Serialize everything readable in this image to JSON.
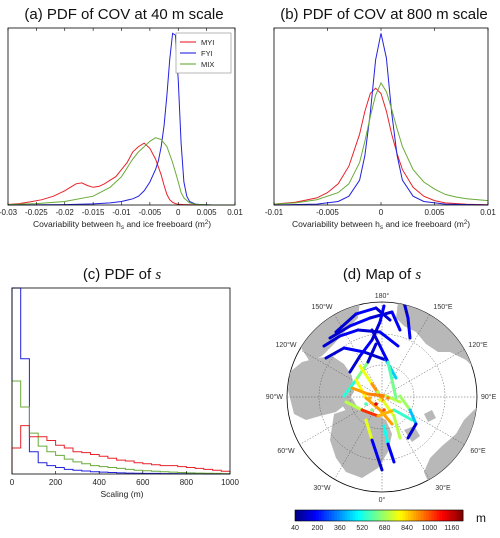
{
  "chart_data": [
    {
      "panel": "a",
      "type": "line",
      "title": "(a) PDF of COV at 40 m scale",
      "xlabel": "Covariability between h",
      "xlabel_sub": "s",
      "xlabel_tail": " and ice freeboard (m",
      "xlabel_sup": "2",
      "xlabel_end": ")",
      "xlim": [
        -0.03,
        0.01
      ],
      "ylim": [
        0,
        1
      ],
      "xticks": [
        "-0.03",
        "-0.025",
        "-0.02",
        "-0.015",
        "-0.01",
        "-0.005",
        "0",
        "0.005",
        "0.01"
      ],
      "xtick_values": [
        -0.03,
        -0.025,
        -0.02,
        -0.015,
        -0.01,
        -0.005,
        0,
        0.005,
        0.01
      ],
      "legend_position": "top-right",
      "series": [
        {
          "name": "MYI",
          "color": "#e8222a",
          "x": [
            -0.03,
            -0.028,
            -0.026,
            -0.024,
            -0.022,
            -0.02,
            -0.019,
            -0.018,
            -0.017,
            -0.016,
            -0.015,
            -0.014,
            -0.013,
            -0.012,
            -0.011,
            -0.01,
            -0.009,
            -0.008,
            -0.007,
            -0.006,
            -0.005,
            -0.004,
            -0.003,
            -0.0025,
            -0.002,
            -0.0015,
            -0.001,
            -0.0005,
            0,
            0.001,
            0.002,
            0.004,
            0.006,
            0.008,
            0.01
          ],
          "y": [
            0.003,
            0.008,
            0.018,
            0.03,
            0.05,
            0.08,
            0.1,
            0.12,
            0.125,
            0.11,
            0.1,
            0.105,
            0.12,
            0.14,
            0.16,
            0.2,
            0.24,
            0.3,
            0.33,
            0.35,
            0.32,
            0.26,
            0.17,
            0.11,
            0.06,
            0.03,
            0.015,
            0.008,
            0.004,
            0.002,
            0.001,
            0,
            0,
            0,
            0
          ]
        },
        {
          "name": "FYI",
          "color": "#2222dd",
          "x": [
            -0.03,
            -0.02,
            -0.015,
            -0.012,
            -0.01,
            -0.008,
            -0.007,
            -0.006,
            -0.005,
            -0.004,
            -0.0035,
            -0.003,
            -0.0025,
            -0.002,
            -0.0015,
            -0.001,
            -0.0005,
            0,
            0.0005,
            0.001,
            0.0015,
            0.002,
            0.003,
            0.004,
            0.006,
            0.01
          ],
          "y": [
            0,
            0.002,
            0.006,
            0.012,
            0.02,
            0.035,
            0.05,
            0.08,
            0.13,
            0.2,
            0.25,
            0.33,
            0.45,
            0.62,
            0.82,
            0.97,
            0.96,
            0.7,
            0.35,
            0.13,
            0.05,
            0.02,
            0.005,
            0.002,
            0,
            0
          ]
        },
        {
          "name": "MIX",
          "color": "#6aaa3a",
          "x": [
            -0.03,
            -0.025,
            -0.02,
            -0.015,
            -0.012,
            -0.01,
            -0.008,
            -0.007,
            -0.006,
            -0.005,
            -0.004,
            -0.003,
            -0.002,
            -0.001,
            0,
            0.0005,
            0.001,
            0.002,
            0.003,
            0.004,
            0.006,
            0.01
          ],
          "y": [
            0.002,
            0.008,
            0.02,
            0.05,
            0.1,
            0.16,
            0.26,
            0.3,
            0.33,
            0.36,
            0.38,
            0.37,
            0.33,
            0.24,
            0.13,
            0.07,
            0.04,
            0.012,
            0.004,
            0.002,
            0,
            0
          ]
        }
      ]
    },
    {
      "panel": "b",
      "type": "line",
      "title": "(b) PDF of COV at 800 m scale",
      "xlabel": "Covariability between h",
      "xlabel_sub": "s",
      "xlabel_tail": " and ice freeboard (m",
      "xlabel_sup": "2",
      "xlabel_end": ")",
      "xlim": [
        -0.01,
        0.01
      ],
      "ylim": [
        0,
        1
      ],
      "xticks": [
        "-0.01",
        "-0.005",
        "0",
        "0.005",
        "0.01"
      ],
      "xtick_values": [
        -0.01,
        -0.005,
        0,
        0.005,
        0.01
      ],
      "series": [
        {
          "name": "MYI",
          "color": "#e8222a",
          "x": [
            -0.01,
            -0.008,
            -0.006,
            -0.005,
            -0.004,
            -0.003,
            -0.002,
            -0.0015,
            -0.001,
            -0.0005,
            0,
            0.0005,
            0.001,
            0.0015,
            0.002,
            0.003,
            0.004,
            0.005,
            0.006,
            0.008,
            0.01
          ],
          "y": [
            0.005,
            0.015,
            0.04,
            0.07,
            0.12,
            0.22,
            0.4,
            0.53,
            0.63,
            0.66,
            0.63,
            0.53,
            0.4,
            0.29,
            0.2,
            0.1,
            0.05,
            0.025,
            0.012,
            0.004,
            0.001
          ]
        },
        {
          "name": "FYI",
          "color": "#2222dd",
          "x": [
            -0.01,
            -0.006,
            -0.004,
            -0.003,
            -0.002,
            -0.0015,
            -0.001,
            -0.0005,
            0,
            0.0005,
            0.001,
            0.0015,
            0.002,
            0.003,
            0.004,
            0.006,
            0.01
          ],
          "y": [
            0,
            0.005,
            0.02,
            0.05,
            0.14,
            0.28,
            0.52,
            0.82,
            0.97,
            0.83,
            0.52,
            0.28,
            0.14,
            0.05,
            0.02,
            0.005,
            0
          ]
        },
        {
          "name": "MIX",
          "color": "#6aaa3a",
          "x": [
            -0.01,
            -0.008,
            -0.006,
            -0.004,
            -0.003,
            -0.002,
            -0.0015,
            -0.001,
            -0.0005,
            0,
            0.0005,
            0.001,
            0.0015,
            0.002,
            0.003,
            0.004,
            0.005,
            0.006,
            0.007,
            0.008,
            0.01
          ],
          "y": [
            0.005,
            0.012,
            0.03,
            0.07,
            0.12,
            0.24,
            0.36,
            0.5,
            0.62,
            0.69,
            0.64,
            0.54,
            0.43,
            0.33,
            0.2,
            0.13,
            0.09,
            0.06,
            0.045,
            0.035,
            0.025
          ]
        }
      ]
    },
    {
      "panel": "c",
      "type": "histogram",
      "title": "(c) PDF of ",
      "title_italic": "s",
      "xlabel": "Scaling (m)",
      "xlim": [
        0,
        1000
      ],
      "ylim": [
        0,
        1
      ],
      "xticks": [
        "0",
        "200",
        "400",
        "600",
        "800",
        "1000"
      ],
      "xtick_values": [
        0,
        200,
        400,
        600,
        800,
        1000
      ],
      "bin_edges": [
        0,
        40,
        80,
        120,
        160,
        200,
        240,
        280,
        320,
        360,
        400,
        440,
        480,
        520,
        560,
        600,
        640,
        680,
        720,
        760,
        800,
        840,
        880,
        920,
        960,
        1000
      ],
      "series": [
        {
          "name": "FYI",
          "color": "#2222dd",
          "values": [
            1.0,
            0.62,
            0.12,
            0.06,
            0.045,
            0.035,
            0.025,
            0.02,
            0.016,
            0.012,
            0.01,
            0.008,
            0.006,
            0.005,
            0.004,
            0.003,
            0.003,
            0.002,
            0.002,
            0.001,
            0.001,
            0.001,
            0,
            0,
            0
          ]
        },
        {
          "name": "MIX",
          "color": "#6aaa3a",
          "values": [
            0.5,
            0.36,
            0.22,
            0.15,
            0.12,
            0.1,
            0.08,
            0.065,
            0.055,
            0.045,
            0.04,
            0.035,
            0.03,
            0.025,
            0.02,
            0.018,
            0.015,
            0.012,
            0.01,
            0.008,
            0.006,
            0.005,
            0.004,
            0.003,
            0.002
          ]
        },
        {
          "name": "MYI",
          "color": "#e8222a",
          "values": [
            0.14,
            0.26,
            0.2,
            0.2,
            0.18,
            0.155,
            0.14,
            0.12,
            0.115,
            0.105,
            0.095,
            0.085,
            0.075,
            0.07,
            0.06,
            0.055,
            0.05,
            0.045,
            0.045,
            0.04,
            0.035,
            0.03,
            0.025,
            0.02,
            0.015
          ]
        }
      ]
    },
    {
      "panel": "d",
      "type": "map",
      "title": "(d) ",
      "title_main": "Map of ",
      "title_italic": "s",
      "longitude_labels": [
        "180°",
        "150°W",
        "150°E",
        "120°W",
        "120°E",
        "90°W",
        "90°E",
        "60°W",
        "60°E",
        "30°W",
        "30°E",
        "0°"
      ],
      "colorbar": {
        "ticks": [
          "40",
          "200",
          "360",
          "520",
          "680",
          "840",
          "1000",
          "1160"
        ],
        "tick_values": [
          40,
          200,
          360,
          520,
          680,
          840,
          1000,
          1160
        ],
        "range": [
          40,
          1240
        ],
        "unit": "m",
        "colormap": "jet"
      }
    }
  ]
}
